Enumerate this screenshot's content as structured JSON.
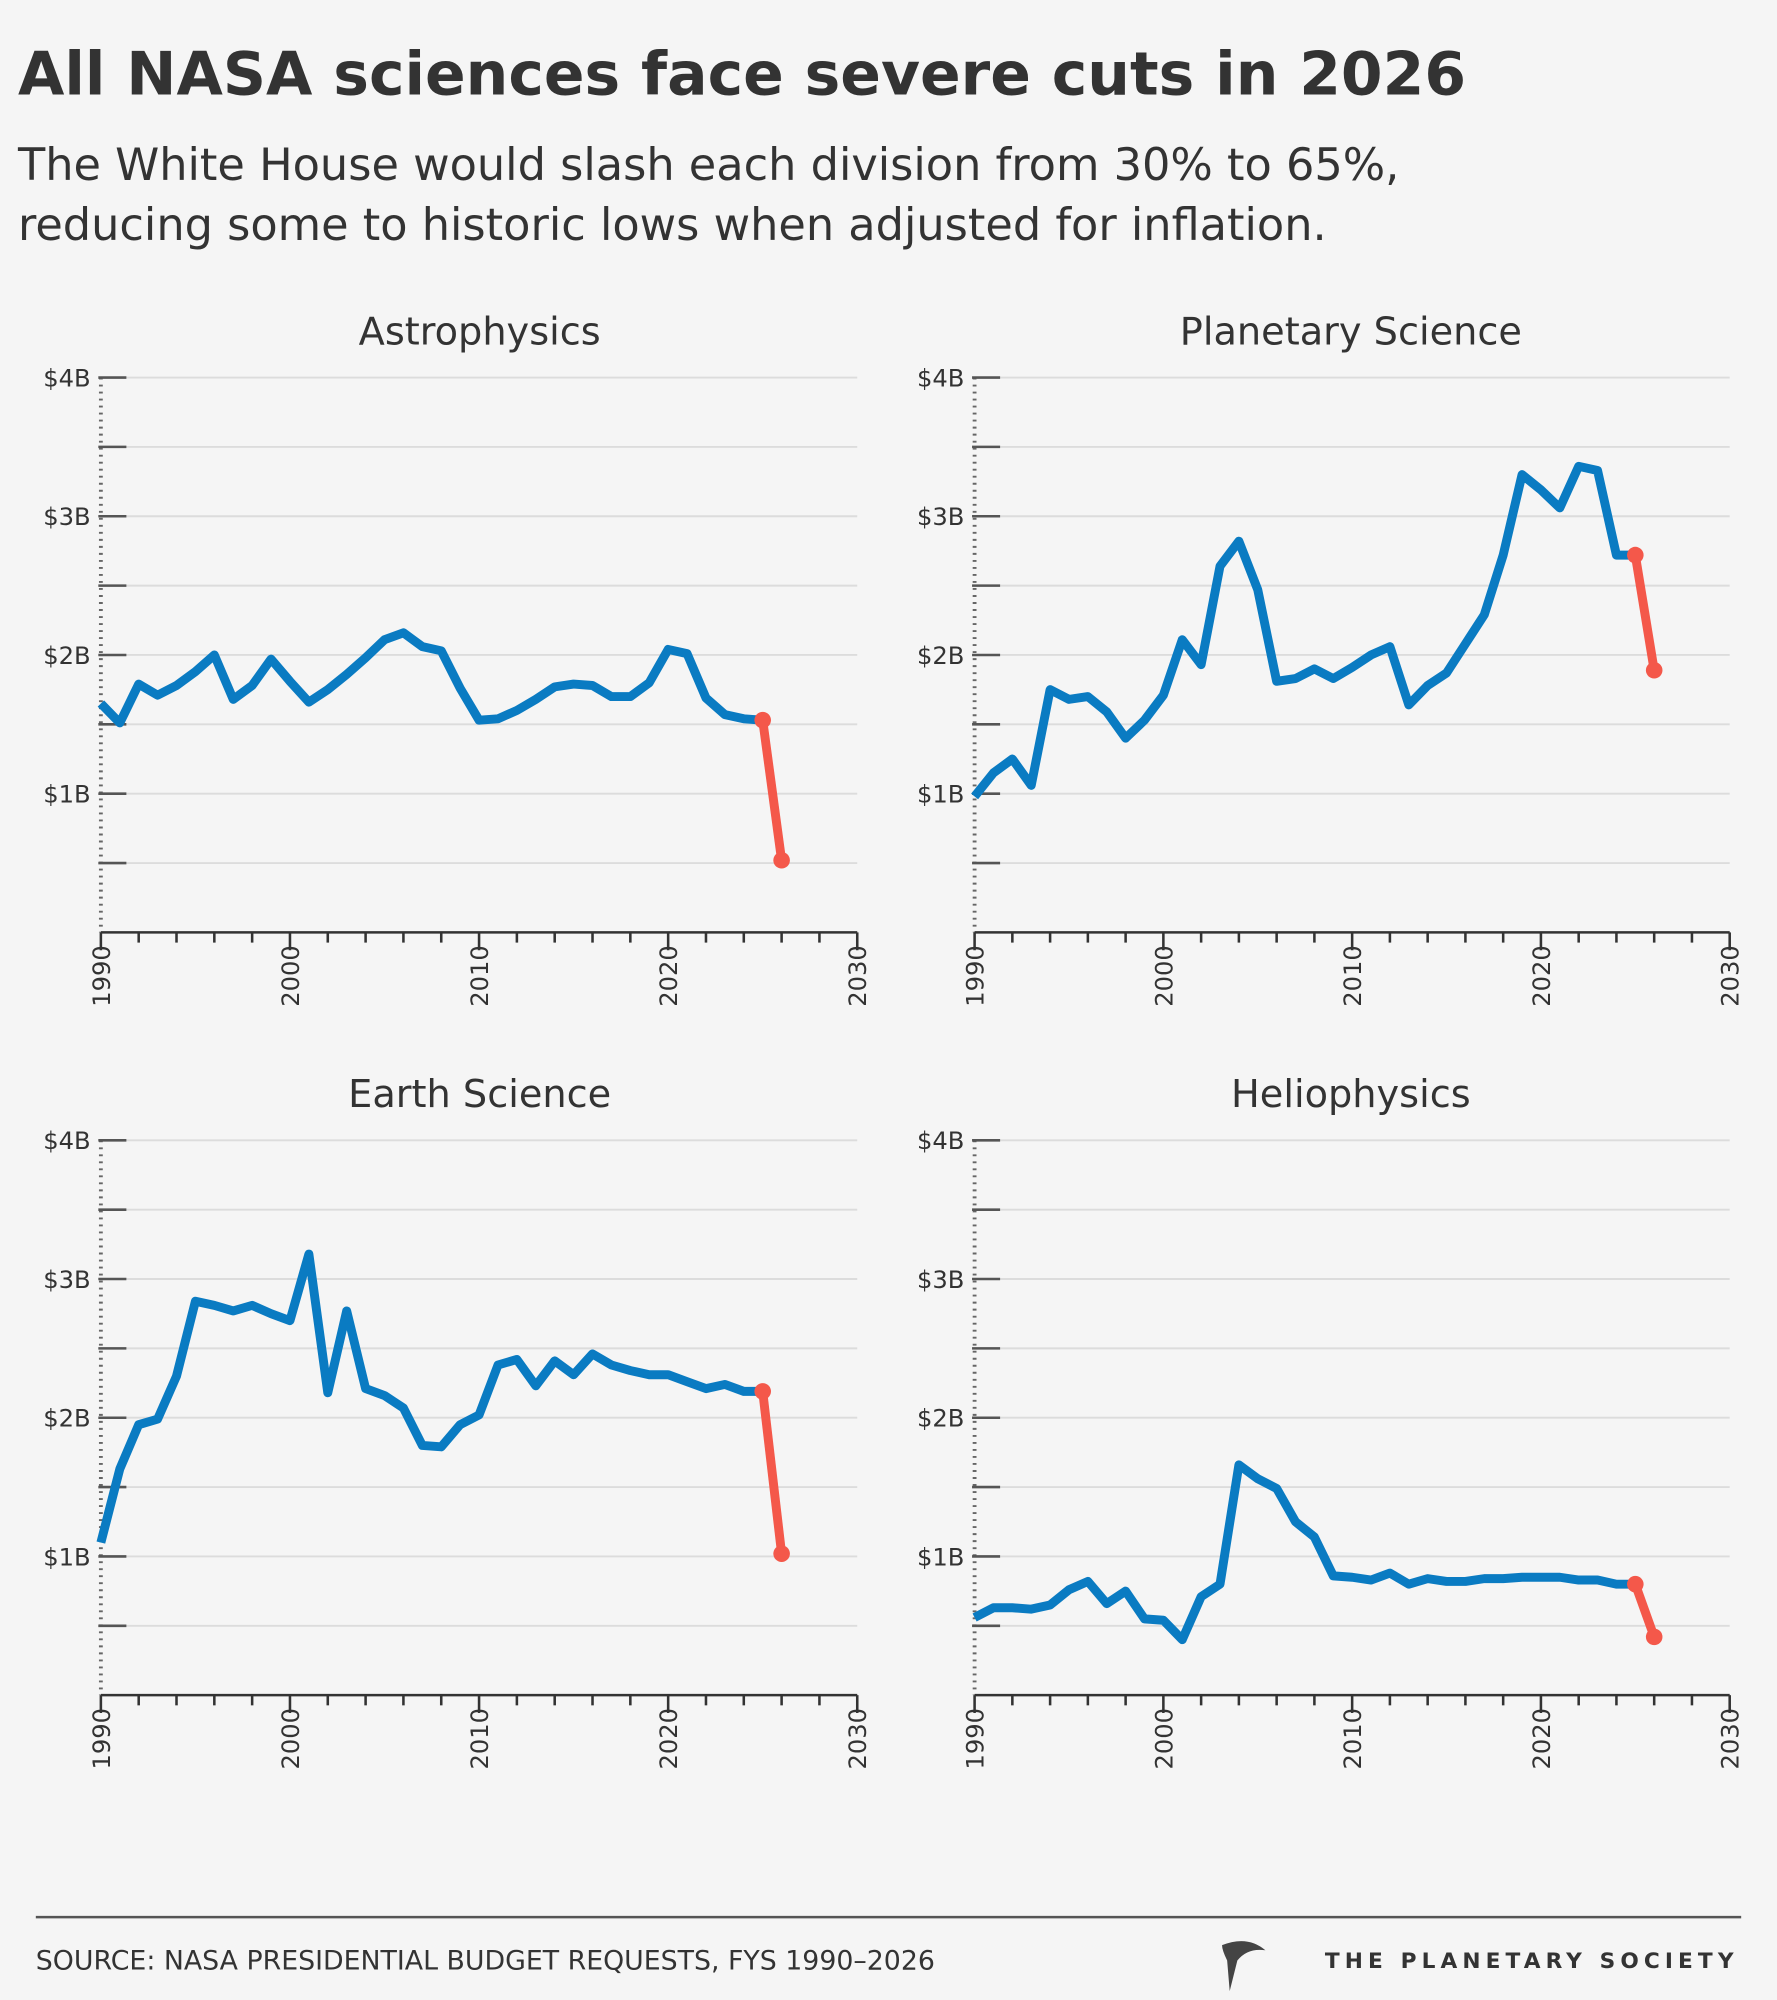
{
  "header": {
    "title": "All NASA sciences face severe cuts in 2026",
    "subtitle": [
      "The White House would slash each division from 30% to 65%,",
      "reducing some to historic lows when adjusted for inflation."
    ]
  },
  "footer": {
    "source": "SOURCE: NASA PRESIDENTIAL BUDGET REQUESTS, FYS 1990–2026",
    "logo": "THE PLANETARY SOCIETY"
  },
  "chart_data": [
    {
      "type": "line",
      "title": "Astrophysics",
      "x": [
        1990,
        1991,
        1992,
        1993,
        1994,
        1995,
        1996,
        1997,
        1998,
        1999,
        2000,
        2001,
        2002,
        2003,
        2004,
        2005,
        2006,
        2007,
        2008,
        2009,
        2010,
        2011,
        2012,
        2013,
        2014,
        2015,
        2016,
        2017,
        2018,
        2019,
        2020,
        2021,
        2022,
        2023,
        2024,
        2025,
        2026
      ],
      "series": [
        {
          "color": "#0a7bc2",
          "values": [
            1.65,
            1.51,
            1.79,
            1.71,
            1.78,
            1.88,
            2.0,
            1.68,
            1.78,
            1.97,
            1.81,
            1.66,
            1.75,
            1.86,
            1.98,
            2.11,
            2.16,
            2.06,
            2.03,
            1.76,
            1.53,
            1.54,
            1.6,
            1.68,
            1.77,
            1.79,
            1.78,
            1.7,
            1.7,
            1.8,
            2.04,
            2.01,
            1.69,
            1.57,
            1.54,
            1.53,
            null
          ]
        },
        {
          "color": "#f4584a",
          "markers": true,
          "values": [
            null,
            null,
            null,
            null,
            null,
            null,
            null,
            null,
            null,
            null,
            null,
            null,
            null,
            null,
            null,
            null,
            null,
            null,
            null,
            null,
            null,
            null,
            null,
            null,
            null,
            null,
            null,
            null,
            null,
            null,
            null,
            null,
            null,
            null,
            null,
            1.53,
            0.52
          ]
        }
      ],
      "xlim": [
        1990,
        2030
      ],
      "xticks": [
        1990,
        2000,
        2010,
        2020,
        2030
      ],
      "xminorticks": [
        1992,
        1994,
        1996,
        1998,
        2002,
        2004,
        2006,
        2008,
        2012,
        2014,
        2016,
        2018,
        2022,
        2024,
        2026,
        2028
      ],
      "ylim": [
        0,
        4
      ],
      "yticks": [
        {
          "value": 1,
          "label": "$1B"
        },
        {
          "value": 2,
          "label": "$2B"
        },
        {
          "value": 3,
          "label": "$3B"
        },
        {
          "value": 4,
          "label": "$4B"
        }
      ],
      "yminorticks": [
        0.5,
        1.5,
        2.5,
        3.5
      ],
      "grid": true
    },
    {
      "type": "line",
      "title": "Planetary Science",
      "x": [
        1990,
        1991,
        1992,
        1993,
        1994,
        1995,
        1996,
        1997,
        1998,
        1999,
        2000,
        2001,
        2002,
        2003,
        2004,
        2005,
        2006,
        2007,
        2008,
        2009,
        2010,
        2011,
        2012,
        2013,
        2014,
        2015,
        2016,
        2017,
        2018,
        2019,
        2020,
        2021,
        2022,
        2023,
        2024,
        2025,
        2026
      ],
      "series": [
        {
          "color": "#0a7bc2",
          "values": [
            0.98,
            1.15,
            1.25,
            1.06,
            1.75,
            1.68,
            1.7,
            1.59,
            1.4,
            1.53,
            1.71,
            2.11,
            1.93,
            2.64,
            2.82,
            2.47,
            1.81,
            1.83,
            1.9,
            1.83,
            1.91,
            2.0,
            2.06,
            1.64,
            1.78,
            1.87,
            2.08,
            2.29,
            2.72,
            3.3,
            3.19,
            3.06,
            3.36,
            3.33,
            2.72,
            2.72,
            null
          ]
        },
        {
          "color": "#f4584a",
          "markers": true,
          "values": [
            null,
            null,
            null,
            null,
            null,
            null,
            null,
            null,
            null,
            null,
            null,
            null,
            null,
            null,
            null,
            null,
            null,
            null,
            null,
            null,
            null,
            null,
            null,
            null,
            null,
            null,
            null,
            null,
            null,
            null,
            null,
            null,
            null,
            null,
            null,
            2.72,
            1.89
          ]
        }
      ],
      "xlim": [
        1990,
        2030
      ],
      "xticks": [
        1990,
        2000,
        2010,
        2020,
        2030
      ],
      "xminorticks": [
        1992,
        1994,
        1996,
        1998,
        2002,
        2004,
        2006,
        2008,
        2012,
        2014,
        2016,
        2018,
        2022,
        2024,
        2026,
        2028
      ],
      "ylim": [
        0,
        4
      ],
      "yticks": [
        {
          "value": 1,
          "label": "$1B"
        },
        {
          "value": 2,
          "label": "$2B"
        },
        {
          "value": 3,
          "label": "$3B"
        },
        {
          "value": 4,
          "label": "$4B"
        }
      ],
      "yminorticks": [
        0.5,
        1.5,
        2.5,
        3.5
      ],
      "grid": true
    },
    {
      "type": "line",
      "title": "Earth Science",
      "x": [
        1990,
        1991,
        1992,
        1993,
        1994,
        1995,
        1996,
        1997,
        1998,
        1999,
        2000,
        2001,
        2002,
        2003,
        2004,
        2005,
        2006,
        2007,
        2008,
        2009,
        2010,
        2011,
        2012,
        2013,
        2014,
        2015,
        2016,
        2017,
        2018,
        2019,
        2020,
        2021,
        2022,
        2023,
        2024,
        2025,
        2026
      ],
      "series": [
        {
          "color": "#0a7bc2",
          "values": [
            1.1,
            1.63,
            1.95,
            1.99,
            2.3,
            2.84,
            2.81,
            2.77,
            2.81,
            2.75,
            2.7,
            3.18,
            2.18,
            2.77,
            2.21,
            2.16,
            2.07,
            1.8,
            1.79,
            1.95,
            2.02,
            2.38,
            2.42,
            2.23,
            2.41,
            2.31,
            2.46,
            2.38,
            2.34,
            2.31,
            2.31,
            2.26,
            2.21,
            2.24,
            2.19,
            2.19,
            null
          ]
        },
        {
          "color": "#f4584a",
          "markers": true,
          "values": [
            null,
            null,
            null,
            null,
            null,
            null,
            null,
            null,
            null,
            null,
            null,
            null,
            null,
            null,
            null,
            null,
            null,
            null,
            null,
            null,
            null,
            null,
            null,
            null,
            null,
            null,
            null,
            null,
            null,
            null,
            null,
            null,
            null,
            null,
            null,
            2.19,
            1.02
          ]
        }
      ],
      "xlim": [
        1990,
        2030
      ],
      "xticks": [
        1990,
        2000,
        2010,
        2020,
        2030
      ],
      "xminorticks": [
        1992,
        1994,
        1996,
        1998,
        2002,
        2004,
        2006,
        2008,
        2012,
        2014,
        2016,
        2018,
        2022,
        2024,
        2026,
        2028
      ],
      "ylim": [
        0,
        4
      ],
      "yticks": [
        {
          "value": 1,
          "label": "$1B"
        },
        {
          "value": 2,
          "label": "$2B"
        },
        {
          "value": 3,
          "label": "$3B"
        },
        {
          "value": 4,
          "label": "$4B"
        }
      ],
      "yminorticks": [
        0.5,
        1.5,
        2.5,
        3.5
      ],
      "grid": true
    },
    {
      "type": "line",
      "title": "Heliophysics",
      "x": [
        1990,
        1991,
        1992,
        1993,
        1994,
        1995,
        1996,
        1997,
        1998,
        1999,
        2000,
        2001,
        2002,
        2003,
        2004,
        2005,
        2006,
        2007,
        2008,
        2009,
        2010,
        2011,
        2012,
        2013,
        2014,
        2015,
        2016,
        2017,
        2018,
        2019,
        2020,
        2021,
        2022,
        2023,
        2024,
        2025,
        2026
      ],
      "series": [
        {
          "color": "#0a7bc2",
          "values": [
            0.56,
            0.63,
            0.63,
            0.62,
            0.65,
            0.76,
            0.82,
            0.66,
            0.75,
            0.55,
            0.54,
            0.4,
            0.71,
            0.8,
            1.66,
            1.56,
            1.49,
            1.25,
            1.14,
            0.86,
            0.85,
            0.83,
            0.88,
            0.8,
            0.84,
            0.82,
            0.82,
            0.84,
            0.84,
            0.85,
            0.85,
            0.85,
            0.83,
            0.83,
            0.8,
            0.8,
            null
          ]
        },
        {
          "color": "#f4584a",
          "markers": true,
          "values": [
            null,
            null,
            null,
            null,
            null,
            null,
            null,
            null,
            null,
            null,
            null,
            null,
            null,
            null,
            null,
            null,
            null,
            null,
            null,
            null,
            null,
            null,
            null,
            null,
            null,
            null,
            null,
            null,
            null,
            null,
            null,
            null,
            null,
            null,
            null,
            0.8,
            0.42
          ]
        }
      ],
      "xlim": [
        1990,
        2030
      ],
      "xticks": [
        1990,
        2000,
        2010,
        2020,
        2030
      ],
      "xminorticks": [
        1992,
        1994,
        1996,
        1998,
        2002,
        2004,
        2006,
        2008,
        2012,
        2014,
        2016,
        2018,
        2022,
        2024,
        2026,
        2028
      ],
      "ylim": [
        0,
        4
      ],
      "yticks": [
        {
          "value": 1,
          "label": "$1B"
        },
        {
          "value": 2,
          "label": "$2B"
        },
        {
          "value": 3,
          "label": "$3B"
        },
        {
          "value": 4,
          "label": "$4B"
        }
      ],
      "yminorticks": [
        0.5,
        1.5,
        2.5,
        3.5
      ],
      "grid": true
    }
  ]
}
